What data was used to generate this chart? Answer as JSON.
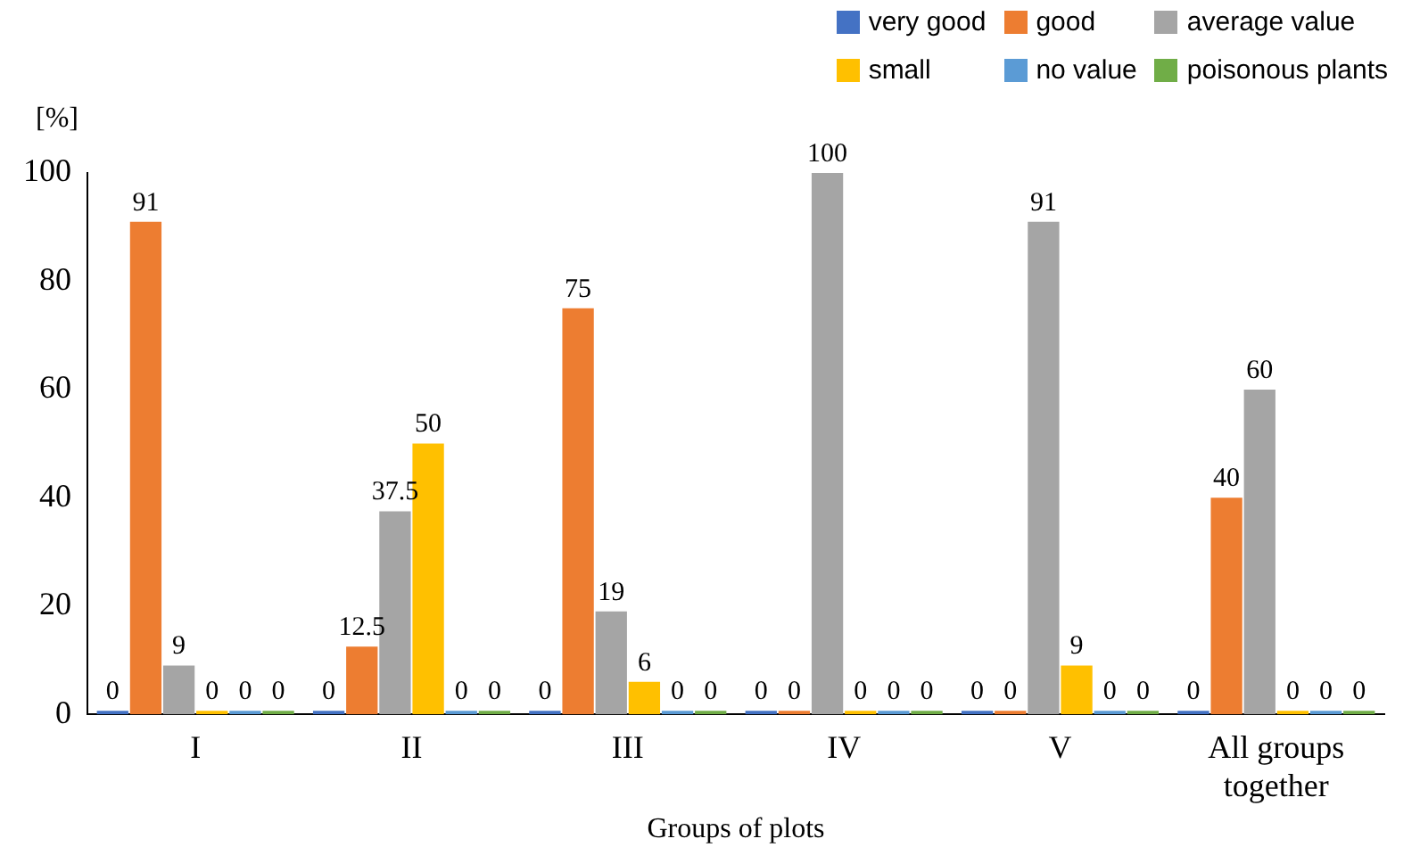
{
  "chart_data": {
    "type": "bar",
    "ylabel": "[%]",
    "xlabel": "Groups of plots",
    "categories": [
      "I",
      "II",
      "III",
      "IV",
      "V",
      "All groups together"
    ],
    "series": [
      {
        "name": "very good",
        "color": "#4472c4",
        "values": [
          0,
          0,
          0,
          0,
          0,
          0
        ]
      },
      {
        "name": "good",
        "color": "#ed7d31",
        "values": [
          91,
          12.5,
          75,
          0,
          0,
          40
        ]
      },
      {
        "name": "average value",
        "color": "#a5a5a5",
        "values": [
          9,
          37.5,
          19,
          100,
          91,
          60
        ]
      },
      {
        "name": "small",
        "color": "#ffc000",
        "values": [
          0,
          50,
          6,
          0,
          9,
          0
        ]
      },
      {
        "name": "no value",
        "color": "#5b9bd5",
        "values": [
          0,
          0,
          0,
          0,
          0,
          0
        ]
      },
      {
        "name": "poisonous plants",
        "color": "#70ad47",
        "values": [
          0,
          0,
          0,
          0,
          0,
          0
        ]
      }
    ],
    "ylim": [
      0,
      100
    ],
    "yticks": [
      0,
      20,
      40,
      60,
      80,
      100
    ],
    "grid": false,
    "legend": "top right",
    "data_labels": true
  }
}
